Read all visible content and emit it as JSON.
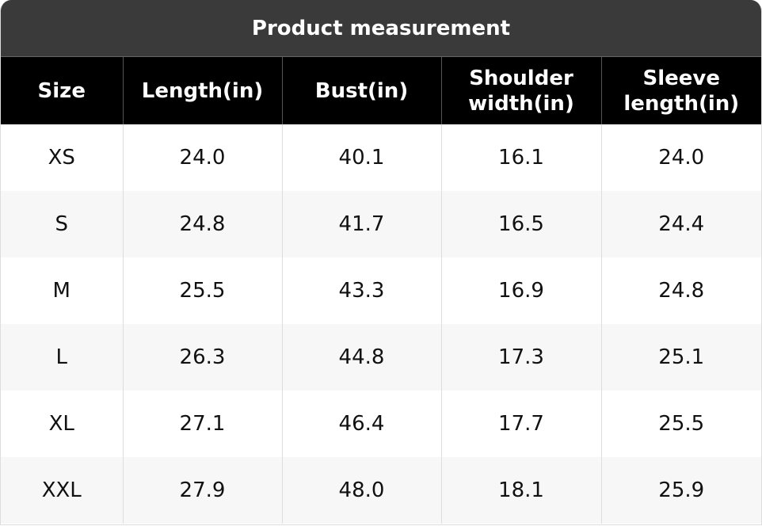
{
  "header": {
    "title": "Product measurement"
  },
  "table": {
    "columns": [
      "Size",
      "Length(in)",
      "Bust(in)",
      "Shoulder width(in)",
      "Sleeve length(in)"
    ],
    "rows": [
      [
        "XS",
        "24.0",
        "40.1",
        "16.1",
        "24.0"
      ],
      [
        "S",
        "24.8",
        "41.7",
        "16.5",
        "24.4"
      ],
      [
        "M",
        "25.5",
        "43.3",
        "16.9",
        "24.8"
      ],
      [
        "L",
        "26.3",
        "44.8",
        "17.3",
        "25.1"
      ],
      [
        "XL",
        "27.1",
        "46.4",
        "17.7",
        "25.5"
      ],
      [
        "XXL",
        "27.9",
        "48.0",
        "18.1",
        "25.9"
      ]
    ]
  }
}
